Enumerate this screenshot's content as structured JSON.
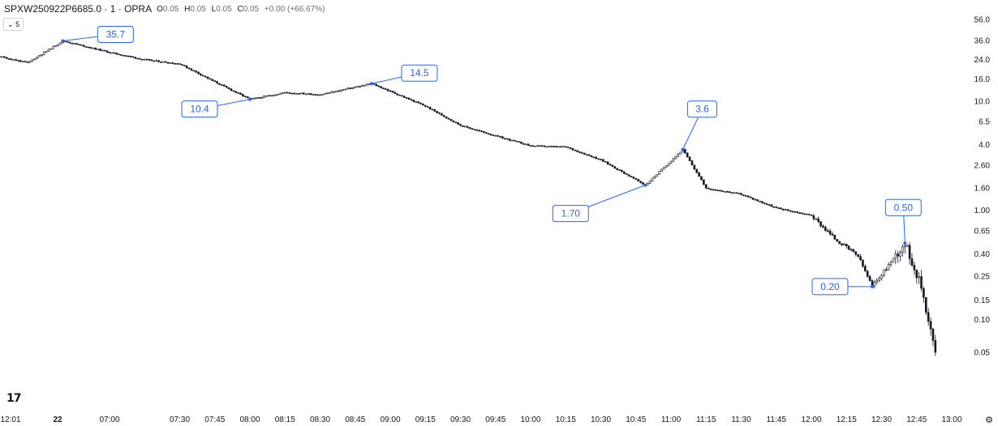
{
  "header": {
    "symbol": "SPXW250922P6685.0 · 1 · OPRA",
    "open_label": "O",
    "open": "0.05",
    "high_label": "H",
    "high": "0.05",
    "low_label": "L",
    "low": "0.05",
    "close_label": "C",
    "close": "0.05",
    "change": "+0.00 (+66.67%)"
  },
  "collapse_button": {
    "icon": "chevron-down-icon",
    "count": "5"
  },
  "logo_text": "17",
  "settings_icon": "gear-icon",
  "colors": {
    "candle": "#131722",
    "callout": "#2962ff",
    "callout_bg": "#ffffff"
  },
  "chart_data": {
    "type": "candlestick",
    "y_scale": "log",
    "x_ticks": [
      "12:01",
      "22",
      "07:00",
      "07:30",
      "07:45",
      "08:00",
      "08:15",
      "08:30",
      "08:45",
      "09:00",
      "09:15",
      "09:30",
      "09:45",
      "10:00",
      "10:15",
      "10:30",
      "10:45",
      "11:00",
      "11:15",
      "11:30",
      "11:45",
      "12:00",
      "12:15",
      "12:30",
      "12:45",
      "13:00"
    ],
    "y_ticks": [
      "56.0",
      "36.0",
      "24.0",
      "16.0",
      "10.0",
      "6.5",
      "4.0",
      "2.60",
      "1.60",
      "1.00",
      "0.65",
      "0.40",
      "0.25",
      "0.15",
      "0.10",
      "0.05"
    ],
    "callouts": [
      {
        "label": "35.7",
        "time": "06:40",
        "price": 35.7
      },
      {
        "label": "10.4",
        "time": "08:00",
        "price": 10.4
      },
      {
        "label": "14.5",
        "time": "08:52",
        "price": 14.5
      },
      {
        "label": "1.70",
        "time": "10:49",
        "price": 1.7
      },
      {
        "label": "3.6",
        "time": "11:05",
        "price": 3.6
      },
      {
        "label": "0.20",
        "time": "12:26",
        "price": 0.2
      },
      {
        "label": "0.50",
        "time": "12:40",
        "price": 0.5
      }
    ],
    "price_path": [
      {
        "time": "05:55",
        "price": 28.0
      },
      {
        "time": "06:10",
        "price": 26.5
      },
      {
        "time": "06:25",
        "price": 22.5
      },
      {
        "time": "06:40",
        "price": 35.7
      },
      {
        "time": "07:00",
        "price": 28.0
      },
      {
        "time": "07:15",
        "price": 24.0
      },
      {
        "time": "07:30",
        "price": 22.0
      },
      {
        "time": "07:45",
        "price": 15.0
      },
      {
        "time": "08:00",
        "price": 10.4
      },
      {
        "time": "08:15",
        "price": 12.0
      },
      {
        "time": "08:30",
        "price": 11.5
      },
      {
        "time": "08:52",
        "price": 14.5
      },
      {
        "time": "09:15",
        "price": 9.0
      },
      {
        "time": "09:30",
        "price": 6.0
      },
      {
        "time": "09:45",
        "price": 4.8
      },
      {
        "time": "10:00",
        "price": 3.9
      },
      {
        "time": "10:15",
        "price": 3.8
      },
      {
        "time": "10:30",
        "price": 2.9
      },
      {
        "time": "10:49",
        "price": 1.7
      },
      {
        "time": "11:05",
        "price": 3.6
      },
      {
        "time": "11:15",
        "price": 1.6
      },
      {
        "time": "11:30",
        "price": 1.4
      },
      {
        "time": "11:45",
        "price": 1.05
      },
      {
        "time": "12:00",
        "price": 0.9
      },
      {
        "time": "12:10",
        "price": 0.55
      },
      {
        "time": "12:20",
        "price": 0.38
      },
      {
        "time": "12:26",
        "price": 0.2
      },
      {
        "time": "12:40",
        "price": 0.5
      },
      {
        "time": "12:47",
        "price": 0.2
      },
      {
        "time": "12:50",
        "price": 0.1
      },
      {
        "time": "12:53",
        "price": 0.05
      }
    ]
  }
}
